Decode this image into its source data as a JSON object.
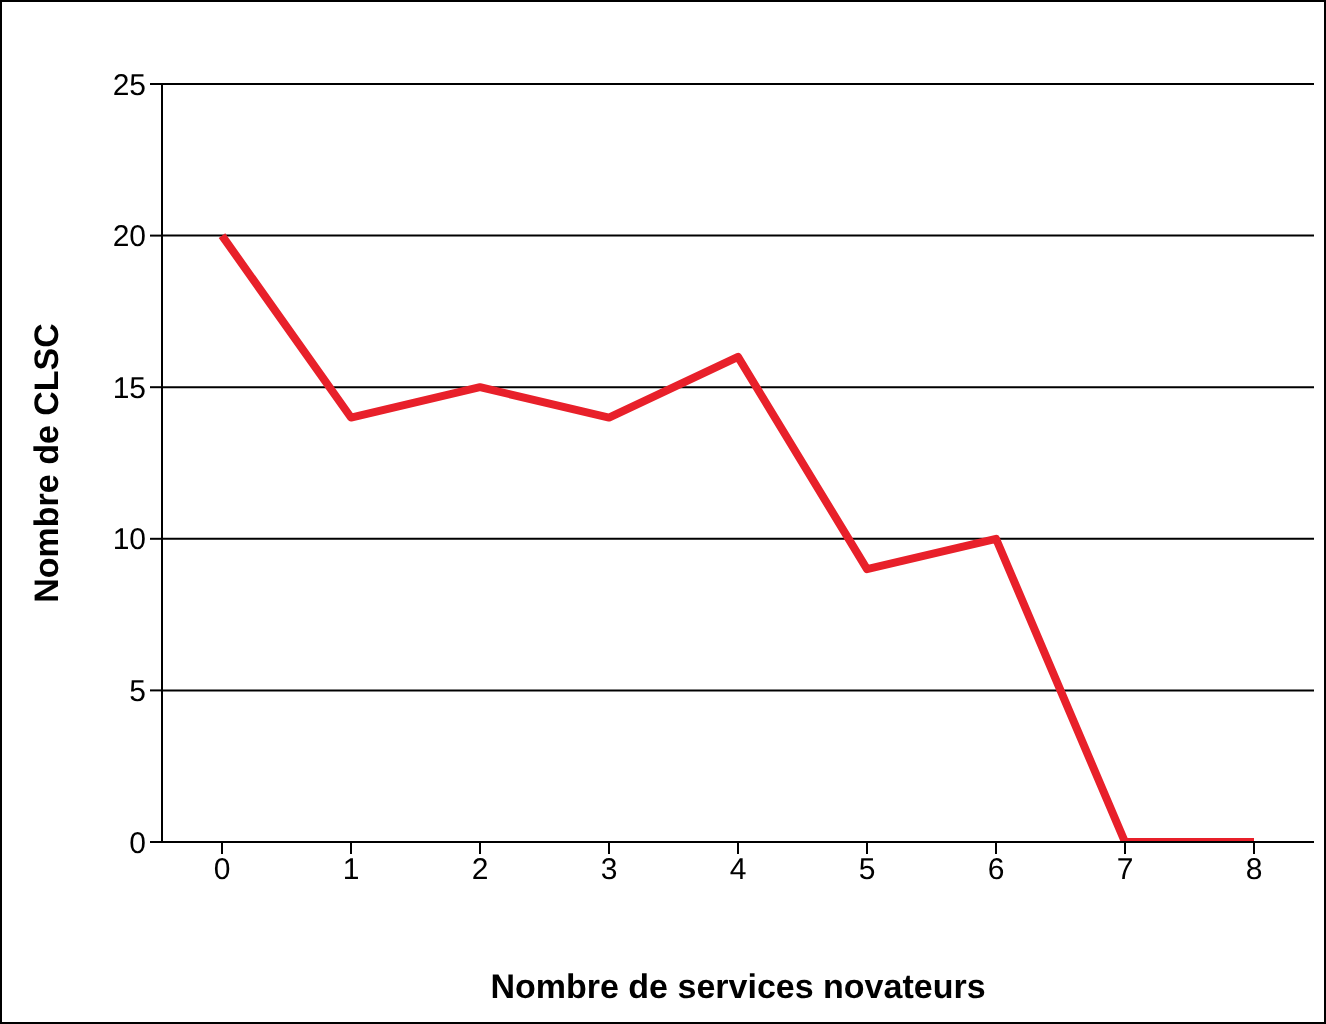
{
  "chart_data": {
    "type": "line",
    "xlabel": "Nombre de services novateurs",
    "ylabel": "Nombre de CLSC",
    "categories": [
      "0",
      "1",
      "2",
      "3",
      "4",
      "5",
      "6",
      "7",
      "8"
    ],
    "series": [
      {
        "color": "#e8202a",
        "values": [
          20,
          14,
          15,
          14,
          16,
          9,
          10,
          0,
          0
        ]
      }
    ],
    "ylim": [
      0,
      25
    ],
    "yticks": [
      0,
      5,
      10,
      15,
      20,
      25
    ],
    "grid": "y",
    "marker": "none",
    "line_style": "solid",
    "legend": false
  }
}
